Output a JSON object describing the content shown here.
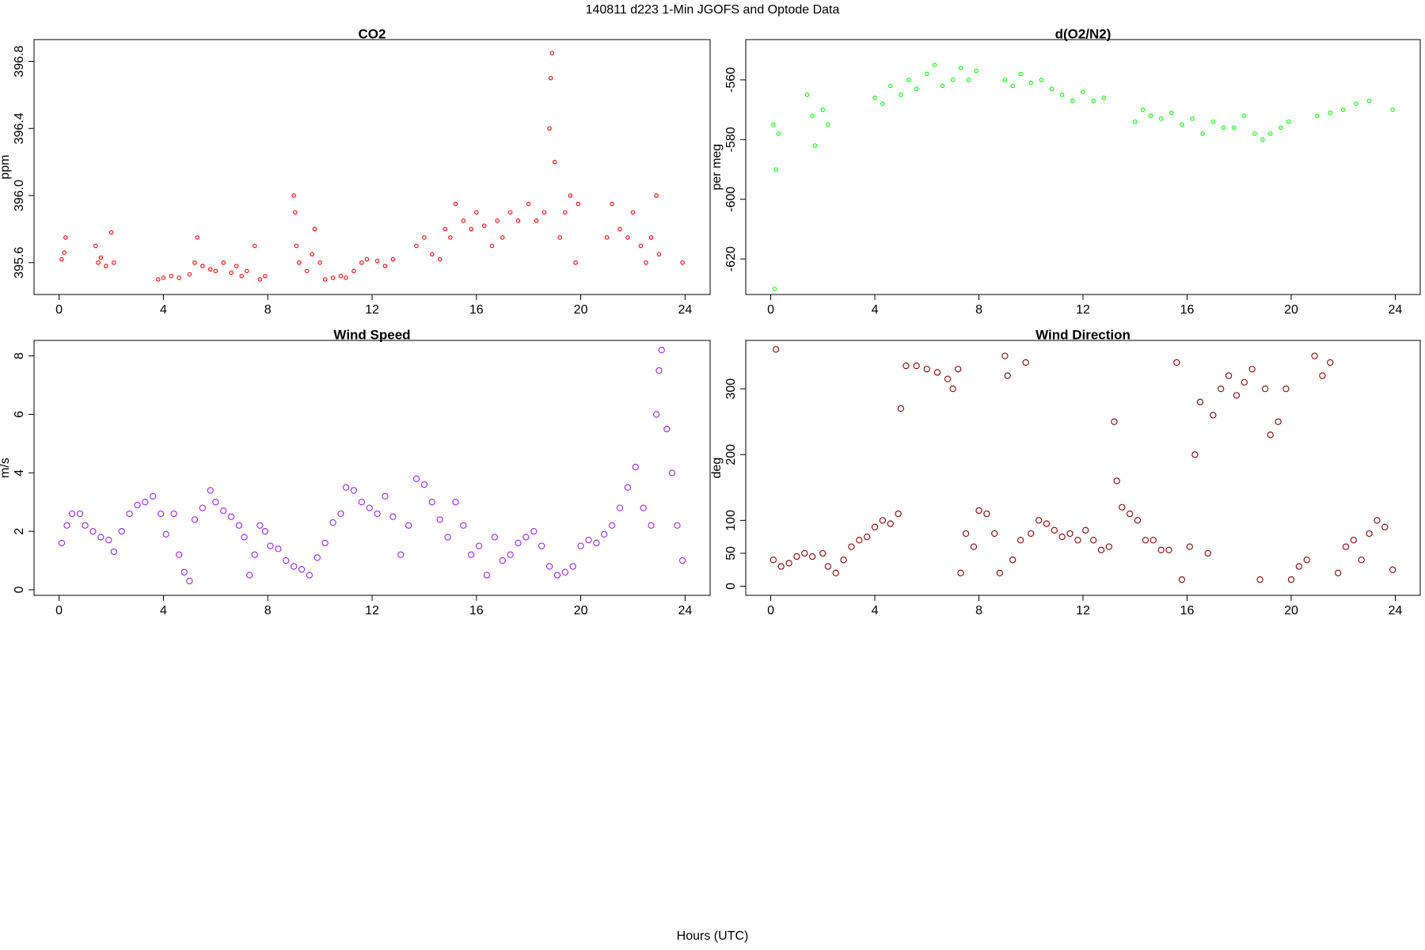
{
  "title": "140811   d223   1-Min  JGOFS and Optode Data",
  "xlabel": "Hours (UTC)",
  "chart_data": [
    {
      "type": "scatter",
      "title": "CO2",
      "ylabel": "ppm",
      "color": "#ff0000",
      "xlim": [
        -0.96,
        24.96
      ],
      "xticks": [
        0,
        4,
        8,
        12,
        16,
        20,
        24
      ],
      "ylim": [
        395.41,
        396.93
      ],
      "yticks": [
        395.6,
        {
          "value": 396,
          "label": "396.0"
        },
        396.4,
        396.8
      ],
      "x": [
        0.1,
        0.2,
        0.25,
        1.4,
        1.5,
        1.6,
        1.8,
        2.0,
        2.1,
        3.8,
        4.0,
        4.3,
        4.6,
        5.0,
        5.2,
        5.3,
        5.5,
        5.8,
        6.0,
        6.3,
        6.6,
        6.8,
        7.0,
        7.2,
        7.5,
        7.7,
        7.9,
        9.0,
        9.05,
        9.1,
        9.2,
        9.5,
        9.7,
        9.8,
        10.0,
        10.2,
        10.5,
        10.8,
        11.0,
        11.3,
        11.6,
        11.8,
        12.2,
        12.5,
        12.8,
        13.7,
        14.0,
        14.3,
        14.6,
        14.8,
        15.0,
        15.2,
        15.5,
        15.8,
        16.0,
        16.3,
        16.6,
        16.8,
        17.0,
        17.3,
        17.6,
        18.0,
        18.3,
        18.6,
        18.8,
        18.85,
        18.9,
        19.0,
        19.2,
        19.4,
        19.6,
        19.8,
        19.9,
        21.0,
        21.2,
        21.5,
        21.8,
        22.0,
        22.3,
        22.5,
        22.7,
        22.9,
        23.0,
        23.9
      ],
      "values": [
        395.62,
        395.66,
        395.75,
        395.7,
        395.6,
        395.63,
        395.58,
        395.78,
        395.6,
        395.5,
        395.51,
        395.52,
        395.51,
        395.53,
        395.6,
        395.75,
        395.58,
        395.56,
        395.55,
        395.6,
        395.54,
        395.58,
        395.52,
        395.55,
        395.7,
        395.5,
        395.52,
        396.0,
        395.9,
        395.7,
        395.6,
        395.55,
        395.65,
        395.8,
        395.6,
        395.5,
        395.51,
        395.52,
        395.51,
        395.55,
        395.6,
        395.62,
        395.61,
        395.58,
        395.62,
        395.7,
        395.75,
        395.65,
        395.62,
        395.8,
        395.75,
        395.95,
        395.85,
        395.8,
        395.9,
        395.82,
        395.7,
        395.85,
        395.75,
        395.9,
        395.85,
        395.95,
        395.85,
        395.9,
        396.4,
        396.7,
        396.85,
        396.2,
        395.75,
        395.9,
        396.0,
        395.6,
        395.95,
        395.75,
        395.95,
        395.8,
        395.75,
        395.9,
        395.7,
        395.6,
        395.75,
        396.0,
        395.65,
        395.6
      ]
    },
    {
      "type": "scatter",
      "title": "d(O2/N2)",
      "ylabel": "per meg",
      "color": "#00ff00",
      "xlim": [
        -0.96,
        24.96
      ],
      "xticks": [
        0,
        4,
        8,
        12,
        16,
        20,
        24
      ],
      "ylim": [
        -631.9,
        -546.5
      ],
      "yticks": [
        -620,
        -600,
        -580,
        -560
      ],
      "x": [
        0.1,
        0.15,
        0.2,
        0.3,
        1.4,
        1.6,
        1.7,
        2.0,
        2.2,
        4.0,
        4.3,
        4.6,
        5.0,
        5.3,
        5.6,
        6.0,
        6.3,
        6.6,
        7.0,
        7.3,
        7.6,
        7.9,
        9.0,
        9.3,
        9.6,
        10.0,
        10.4,
        10.8,
        11.2,
        11.6,
        12.0,
        12.4,
        12.8,
        14.0,
        14.3,
        14.6,
        15.0,
        15.4,
        15.8,
        16.2,
        16.6,
        17.0,
        17.4,
        17.8,
        18.2,
        18.6,
        18.9,
        19.2,
        19.6,
        19.9,
        21.0,
        21.5,
        22.0,
        22.5,
        23.0,
        23.9
      ],
      "values": [
        -575,
        -630,
        -590,
        -578,
        -565,
        -572,
        -582,
        -570,
        -575,
        -566,
        -568,
        -562,
        -565,
        -560,
        -563,
        -558,
        -555,
        -562,
        -560,
        -556,
        -560,
        -557,
        -560,
        -562,
        -558,
        -561,
        -560,
        -563,
        -565,
        -567,
        -564,
        -567,
        -566,
        -574,
        -570,
        -572,
        -573,
        -571,
        -575,
        -573,
        -578,
        -574,
        -576,
        -576,
        -572,
        -578,
        -580,
        -578,
        -576,
        -574,
        -572,
        -571,
        -570,
        -568,
        -567,
        -570
      ]
    },
    {
      "type": "scatter",
      "title": "Wind Speed",
      "ylabel": "m/s",
      "color": "#a020f0",
      "xlim": [
        -0.96,
        24.96
      ],
      "xticks": [
        0,
        4,
        8,
        12,
        16,
        20,
        24
      ],
      "ylim": [
        -0.19,
        8.53
      ],
      "yticks": [
        0,
        2,
        4,
        6,
        8
      ],
      "x": [
        0.1,
        0.3,
        0.5,
        0.8,
        1.0,
        1.3,
        1.6,
        1.9,
        2.1,
        2.4,
        2.7,
        3.0,
        3.3,
        3.6,
        3.9,
        4.1,
        4.4,
        4.6,
        4.8,
        5.0,
        5.2,
        5.5,
        5.8,
        6.0,
        6.3,
        6.6,
        6.9,
        7.1,
        7.3,
        7.5,
        7.7,
        7.9,
        8.1,
        8.4,
        8.7,
        9.0,
        9.3,
        9.6,
        9.9,
        10.2,
        10.5,
        10.8,
        11.0,
        11.3,
        11.6,
        11.9,
        12.2,
        12.5,
        12.8,
        13.1,
        13.4,
        13.7,
        14.0,
        14.3,
        14.6,
        14.9,
        15.2,
        15.5,
        15.8,
        16.1,
        16.4,
        16.7,
        17.0,
        17.3,
        17.6,
        17.9,
        18.2,
        18.5,
        18.8,
        19.1,
        19.4,
        19.7,
        20.0,
        20.3,
        20.6,
        20.9,
        21.2,
        21.5,
        21.8,
        22.1,
        22.4,
        22.7,
        22.9,
        23.0,
        23.1,
        23.3,
        23.5,
        23.7,
        23.9
      ],
      "values": [
        1.6,
        2.2,
        2.6,
        2.6,
        2.2,
        2.0,
        1.8,
        1.7,
        1.3,
        2.0,
        2.6,
        2.9,
        3.0,
        3.2,
        2.6,
        1.9,
        2.6,
        1.2,
        0.6,
        0.3,
        2.4,
        2.8,
        3.4,
        3.0,
        2.7,
        2.5,
        2.2,
        1.8,
        0.5,
        1.2,
        2.2,
        2.0,
        1.5,
        1.4,
        1.0,
        0.8,
        0.7,
        0.5,
        1.1,
        1.6,
        2.3,
        2.6,
        3.5,
        3.4,
        3.0,
        2.8,
        2.6,
        3.2,
        2.5,
        1.2,
        2.2,
        3.8,
        3.6,
        3.0,
        2.4,
        1.8,
        3.0,
        2.2,
        1.2,
        1.5,
        0.5,
        1.8,
        1.0,
        1.2,
        1.6,
        1.8,
        2.0,
        1.5,
        0.8,
        0.5,
        0.6,
        0.8,
        1.5,
        1.7,
        1.6,
        1.9,
        2.2,
        2.8,
        3.5,
        4.2,
        2.8,
        2.2,
        6.0,
        7.5,
        8.2,
        5.5,
        4.0,
        2.2,
        1.0
      ]
    },
    {
      "type": "scatter",
      "title": "Wind Direction",
      "ylabel": "deg",
      "color": "#8b0000",
      "xlim": [
        -0.96,
        24.96
      ],
      "xticks": [
        0,
        4,
        8,
        12,
        16,
        20,
        24
      ],
      "ylim": [
        -13.9,
        373.6
      ],
      "yticks": [
        0,
        50,
        100,
        200,
        300
      ],
      "x": [
        0.1,
        0.2,
        0.4,
        0.7,
        1.0,
        1.3,
        1.6,
        2.0,
        2.2,
        2.5,
        2.8,
        3.1,
        3.4,
        3.7,
        4.0,
        4.3,
        4.6,
        4.9,
        5.0,
        5.2,
        5.6,
        6.0,
        6.4,
        6.8,
        7.0,
        7.2,
        7.3,
        7.5,
        7.8,
        8.0,
        8.3,
        8.6,
        8.8,
        9.0,
        9.1,
        9.3,
        9.6,
        9.8,
        10.0,
        10.3,
        10.6,
        10.9,
        11.2,
        11.5,
        11.8,
        12.1,
        12.4,
        12.7,
        13.0,
        13.2,
        13.3,
        13.5,
        13.8,
        14.1,
        14.4,
        14.7,
        15.0,
        15.3,
        15.6,
        15.8,
        16.1,
        16.3,
        16.5,
        16.8,
        17.0,
        17.3,
        17.6,
        17.9,
        18.2,
        18.5,
        18.8,
        19.0,
        19.2,
        19.5,
        19.8,
        20.0,
        20.3,
        20.6,
        20.9,
        21.2,
        21.5,
        21.8,
        22.1,
        22.4,
        22.7,
        23.0,
        23.3,
        23.6,
        23.9
      ],
      "values": [
        40,
        360,
        30,
        35,
        45,
        50,
        45,
        50,
        30,
        20,
        40,
        60,
        70,
        75,
        90,
        100,
        95,
        110,
        270,
        335,
        335,
        330,
        325,
        315,
        300,
        330,
        20,
        80,
        60,
        115,
        110,
        80,
        20,
        350,
        320,
        40,
        70,
        340,
        80,
        100,
        95,
        85,
        75,
        80,
        70,
        85,
        70,
        55,
        60,
        250,
        160,
        120,
        110,
        100,
        70,
        70,
        55,
        55,
        340,
        10,
        60,
        200,
        280,
        50,
        260,
        300,
        320,
        290,
        310,
        330,
        10,
        300,
        230,
        250,
        300,
        10,
        30,
        40,
        350,
        320,
        340,
        20,
        60,
        70,
        40,
        80,
        100,
        90,
        25
      ]
    }
  ]
}
